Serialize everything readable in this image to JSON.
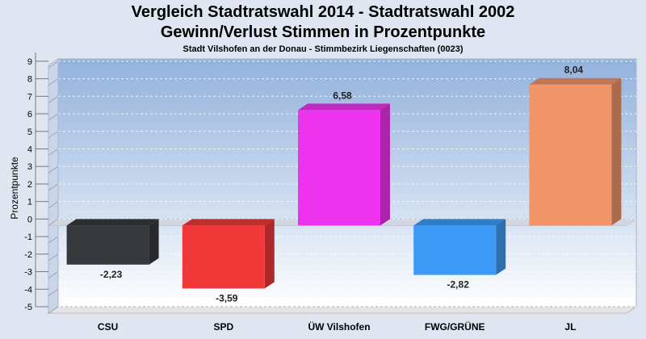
{
  "chart_data": {
    "type": "bar",
    "title": "Vergleich Stadtratswahl 2014 - Stadtratswahl 2002",
    "subtitle": "Gewinn/Verlust Stimmen in Prozentpunkte",
    "caption": "Stadt Vilshofen an der Donau - Stimmbezirk Liegenschaften (0023)",
    "xlabel": "",
    "ylabel": "Prozentpunkte",
    "ylim": [
      -5,
      9.5
    ],
    "yticks": [
      -5,
      -4,
      -3,
      -2,
      -1,
      0,
      1,
      2,
      3,
      4,
      5,
      6,
      7,
      8,
      9
    ],
    "grid": true,
    "categories": [
      "CSU",
      "SPD",
      "ÜW Vilshofen",
      "FWG/GRÜNE",
      "JL"
    ],
    "values": [
      -2.23,
      -3.59,
      6.58,
      -2.82,
      8.04
    ],
    "value_labels": [
      "-2,23",
      "-3,59",
      "6,58",
      "-2,82",
      "8,04"
    ],
    "colors": [
      "#36383c",
      "#f03838",
      "#ee33ee",
      "#3d9bf7",
      "#f0956a"
    ]
  }
}
